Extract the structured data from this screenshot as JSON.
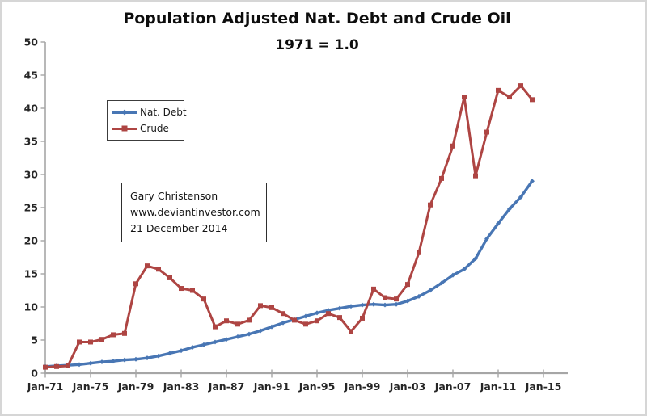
{
  "title": "Population Adjusted Nat. Debt and Crude Oil",
  "subtitle": "1971 = 1.0",
  "annotation": {
    "line1": "Gary Christenson",
    "line2": "www.deviantinvestor.com",
    "line3": "21 December 2014"
  },
  "legend": {
    "items": [
      {
        "label": "Nat. Debt"
      },
      {
        "label": "Crude"
      }
    ]
  },
  "colors": {
    "nat_debt": "#4876B4",
    "crude": "#AE4543",
    "axis": "#A6A6A6",
    "text": "#262626"
  },
  "chart_data": {
    "type": "line",
    "title": "Population Adjusted Nat. Debt and Crude Oil",
    "subtitle": "1971 = 1.0",
    "xlabel": "",
    "ylabel": "",
    "grid": false,
    "legend_position": "upper-left-inside",
    "ylim": [
      0,
      50
    ],
    "y_ticks": [
      0,
      5,
      10,
      15,
      20,
      25,
      30,
      35,
      40,
      45,
      50
    ],
    "x_start": 1971,
    "x": [
      1971,
      1972,
      1973,
      1974,
      1975,
      1976,
      1977,
      1978,
      1979,
      1980,
      1981,
      1982,
      1983,
      1984,
      1985,
      1986,
      1987,
      1988,
      1989,
      1990,
      1991,
      1992,
      1993,
      1994,
      1995,
      1996,
      1997,
      1998,
      1999,
      2000,
      2001,
      2002,
      2003,
      2004,
      2005,
      2006,
      2007,
      2008,
      2009,
      2010,
      2011,
      2012,
      2013,
      2014
    ],
    "x_ticks": [
      {
        "label": "Jan-71",
        "year": 1971
      },
      {
        "label": "Jan-75",
        "year": 1975
      },
      {
        "label": "Jan-79",
        "year": 1979
      },
      {
        "label": "Jan-83",
        "year": 1983
      },
      {
        "label": "Jan-87",
        "year": 1987
      },
      {
        "label": "Jan-91",
        "year": 1991
      },
      {
        "label": "Jan-95",
        "year": 1995
      },
      {
        "label": "Jan-99",
        "year": 1999
      },
      {
        "label": "Jan-03",
        "year": 2003
      },
      {
        "label": "Jan-07",
        "year": 2007
      },
      {
        "label": "Jan-11",
        "year": 2011
      },
      {
        "label": "Jan-15",
        "year": 2015
      }
    ],
    "series": [
      {
        "name": "Nat. Debt",
        "color": "#4876B4",
        "marker": "diamond",
        "line_width": 3.4,
        "values": [
          1.0,
          1.1,
          1.2,
          1.3,
          1.5,
          1.7,
          1.8,
          2.0,
          2.1,
          2.3,
          2.6,
          3.0,
          3.4,
          3.9,
          4.3,
          4.7,
          5.1,
          5.5,
          5.9,
          6.4,
          7.0,
          7.6,
          8.1,
          8.6,
          9.1,
          9.5,
          9.8,
          10.1,
          10.3,
          10.4,
          10.3,
          10.4,
          10.9,
          11.6,
          12.5,
          13.6,
          14.8,
          15.7,
          17.3,
          20.3,
          22.6,
          24.8,
          26.6,
          29.0
        ]
      },
      {
        "name": "Crude",
        "color": "#AE4543",
        "marker": "square",
        "line_width": 3.0,
        "values": [
          0.9,
          1.0,
          1.1,
          4.7,
          4.7,
          5.1,
          5.8,
          6.0,
          13.5,
          16.2,
          15.7,
          14.4,
          12.8,
          12.5,
          11.2,
          7.0,
          7.9,
          7.4,
          8.0,
          10.2,
          9.9,
          9.0,
          8.0,
          7.4,
          7.9,
          9.0,
          8.4,
          6.3,
          8.3,
          12.7,
          11.4,
          11.2,
          13.4,
          18.2,
          25.4,
          29.4,
          34.3,
          41.7,
          29.8,
          36.4,
          42.7,
          41.7,
          43.4,
          41.3
        ]
      }
    ]
  }
}
